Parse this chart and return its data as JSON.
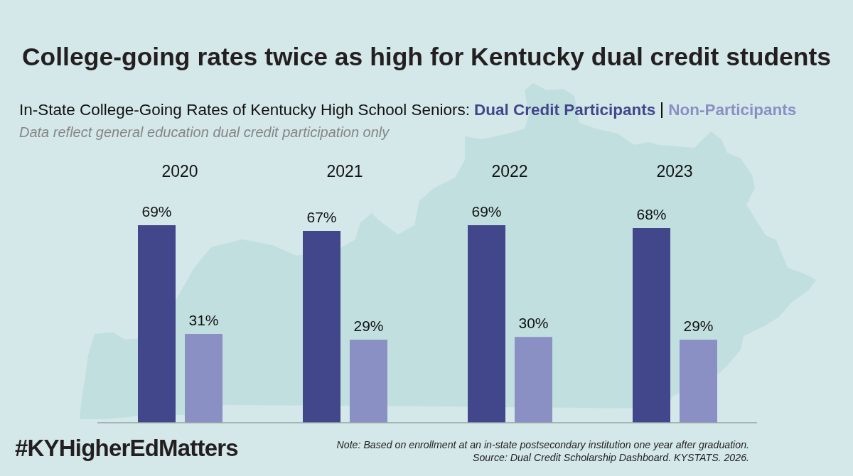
{
  "chart_data": {
    "type": "bar",
    "title": "College-going rates twice as high for Kentucky dual credit students",
    "subtitle": "In-State College-Going Rates of Kentucky High School Seniors:",
    "categories": [
      "2020",
      "2021",
      "2022",
      "2023"
    ],
    "series": [
      {
        "name": "Dual Credit Participants",
        "color": "#42468a",
        "values": [
          69,
          67,
          69,
          68
        ],
        "value_labels": [
          "69%",
          "67%",
          "69%",
          "68%"
        ]
      },
      {
        "name": "Non-Participants",
        "color": "#8a8fc4",
        "values": [
          31,
          29,
          30,
          29
        ],
        "value_labels": [
          "31%",
          "29%",
          "30%",
          "29%"
        ]
      }
    ],
    "legend": "top",
    "annotations": [
      "Data reflect general education dual credit participation only",
      "#KYHigherEdMatters",
      "Note: Based on enrollment at an in-state postsecondary institution one year after graduation.",
      "Source: Dual Credit Scholarship Dashboard. KYSTATS. 2026."
    ]
  }
}
